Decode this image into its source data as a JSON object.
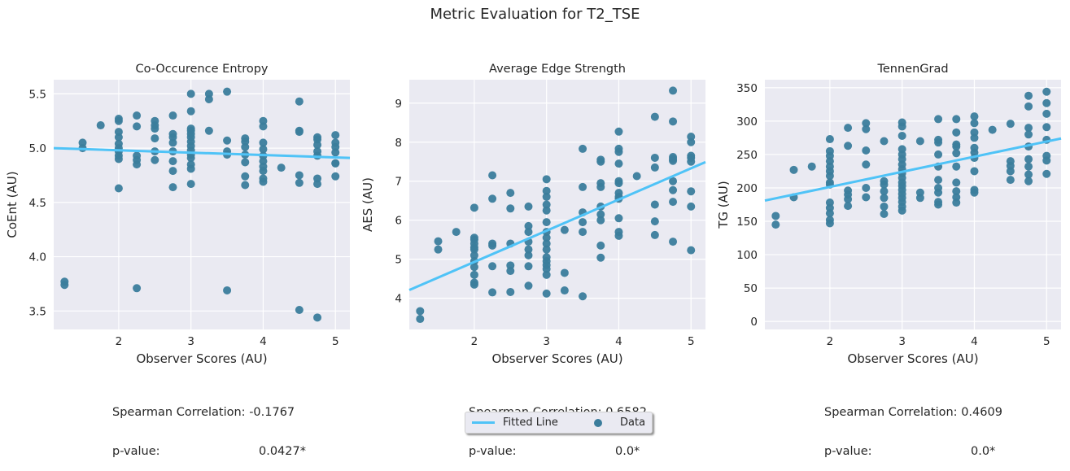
{
  "title": "Metric Evaluation for T2_TSE",
  "colors": {
    "background": "#eaeaf2",
    "grid": "#ffffff",
    "fit": "#4fc3f7",
    "data": "#3b7d9c"
  },
  "legend": {
    "fitted": "Fitted Line",
    "data": "Data"
  },
  "chart_data": [
    {
      "type": "scatter",
      "title": "Co-Occurence Entropy",
      "xlabel": "Observer Scores (AU)",
      "ylabel": "CoEnt (AU)",
      "xlim": [
        1.1,
        5.2
      ],
      "ylim": [
        3.33,
        5.63
      ],
      "xticks": [
        2,
        3,
        4,
        5
      ],
      "yticks": [
        3.5,
        4.0,
        4.5,
        5.0,
        5.5
      ],
      "ytick_labels": [
        "3.5",
        "4.0",
        "4.5",
        "5.0",
        "5.5"
      ],
      "fit": {
        "x": [
          1.1,
          5.2
        ],
        "y": [
          5.0,
          4.91
        ]
      },
      "stats": {
        "corr_label": "Spearman Correlation:",
        "corr": "-0.1767",
        "p_label": "p-value:",
        "p": "0.0427*"
      },
      "points": [
        [
          1.25,
          3.77
        ],
        [
          1.25,
          3.74
        ],
        [
          1.5,
          5.05
        ],
        [
          1.5,
          5.0
        ],
        [
          1.75,
          5.21
        ],
        [
          2,
          5.27
        ],
        [
          2,
          5.25
        ],
        [
          2,
          5.15
        ],
        [
          2,
          5.1
        ],
        [
          2,
          5.04
        ],
        [
          2,
          5.0
        ],
        [
          2,
          4.97
        ],
        [
          2,
          4.93
        ],
        [
          2,
          4.9
        ],
        [
          2,
          4.63
        ],
        [
          2.25,
          5.3
        ],
        [
          2.25,
          5.2
        ],
        [
          2.25,
          4.93
        ],
        [
          2.25,
          4.89
        ],
        [
          2.25,
          4.85
        ],
        [
          2.25,
          3.71
        ],
        [
          2.5,
          5.25
        ],
        [
          2.5,
          5.21
        ],
        [
          2.5,
          5.18
        ],
        [
          2.5,
          5.09
        ],
        [
          2.5,
          4.97
        ],
        [
          2.5,
          4.89
        ],
        [
          2.75,
          5.3
        ],
        [
          2.75,
          5.13
        ],
        [
          2.75,
          5.1
        ],
        [
          2.75,
          5.05
        ],
        [
          2.75,
          4.97
        ],
        [
          2.75,
          4.88
        ],
        [
          2.75,
          4.79
        ],
        [
          2.75,
          4.64
        ],
        [
          3,
          5.5
        ],
        [
          3,
          5.34
        ],
        [
          3,
          5.18
        ],
        [
          3,
          5.16
        ],
        [
          3,
          5.13
        ],
        [
          3,
          5.1
        ],
        [
          3,
          5.06
        ],
        [
          3,
          5.02
        ],
        [
          3,
          4.98
        ],
        [
          3,
          4.94
        ],
        [
          3,
          4.91
        ],
        [
          3,
          4.85
        ],
        [
          3,
          4.81
        ],
        [
          3,
          4.67
        ],
        [
          3.25,
          5.5
        ],
        [
          3.25,
          5.45
        ],
        [
          3.25,
          5.16
        ],
        [
          3.5,
          5.52
        ],
        [
          3.5,
          5.07
        ],
        [
          3.5,
          4.97
        ],
        [
          3.5,
          4.94
        ],
        [
          3.5,
          3.69
        ],
        [
          3.75,
          5.09
        ],
        [
          3.75,
          5.06
        ],
        [
          3.75,
          5.01
        ],
        [
          3.75,
          4.94
        ],
        [
          3.75,
          4.87
        ],
        [
          3.75,
          4.74
        ],
        [
          3.75,
          4.66
        ],
        [
          4,
          5.25
        ],
        [
          4,
          5.2
        ],
        [
          4,
          5.05
        ],
        [
          4,
          4.99
        ],
        [
          4,
          4.93
        ],
        [
          4,
          4.88
        ],
        [
          4,
          4.83
        ],
        [
          4,
          4.79
        ],
        [
          4,
          4.72
        ],
        [
          4,
          4.69
        ],
        [
          4.25,
          4.82
        ],
        [
          4.5,
          5.43
        ],
        [
          4.5,
          5.16
        ],
        [
          4.5,
          5.15
        ],
        [
          4.5,
          4.75
        ],
        [
          4.5,
          4.68
        ],
        [
          4.5,
          3.51
        ],
        [
          4.75,
          5.1
        ],
        [
          4.75,
          5.08
        ],
        [
          4.75,
          5.03
        ],
        [
          4.75,
          4.97
        ],
        [
          4.75,
          4.93
        ],
        [
          4.75,
          4.72
        ],
        [
          4.75,
          4.67
        ],
        [
          4.75,
          3.44
        ],
        [
          5,
          5.12
        ],
        [
          5,
          5.05
        ],
        [
          5,
          5.01
        ],
        [
          5,
          4.96
        ],
        [
          5,
          4.86
        ],
        [
          5,
          4.86
        ],
        [
          5,
          4.74
        ]
      ]
    },
    {
      "type": "scatter",
      "title": "Average Edge Strength",
      "xlabel": "Observer Scores (AU)",
      "ylabel": "AES (AU)",
      "xlim": [
        1.1,
        5.2
      ],
      "ylim": [
        3.2,
        9.6
      ],
      "xticks": [
        2,
        3,
        4,
        5
      ],
      "yticks": [
        4,
        5,
        6,
        7,
        8,
        9
      ],
      "ytick_labels": [
        "4",
        "5",
        "6",
        "7",
        "8",
        "9"
      ],
      "fit": {
        "x": [
          1.1,
          5.2
        ],
        "y": [
          4.21,
          7.49
        ]
      },
      "stats": {
        "corr_label": "Spearman Correlation:",
        "corr": "0.6582",
        "p_label": "p-value:",
        "p": "0.0*"
      },
      "points": [
        [
          1.25,
          3.67
        ],
        [
          1.25,
          3.47
        ],
        [
          1.5,
          5.46
        ],
        [
          1.5,
          5.25
        ],
        [
          1.75,
          5.7
        ],
        [
          2,
          6.32
        ],
        [
          2,
          5.55
        ],
        [
          2,
          5.5
        ],
        [
          2,
          5.4
        ],
        [
          2,
          5.3
        ],
        [
          2,
          5.25
        ],
        [
          2,
          5.1
        ],
        [
          2,
          4.95
        ],
        [
          2,
          4.8
        ],
        [
          2,
          4.6
        ],
        [
          2,
          4.4
        ],
        [
          2,
          4.35
        ],
        [
          2.25,
          7.15
        ],
        [
          2.25,
          6.55
        ],
        [
          2.25,
          5.4
        ],
        [
          2.25,
          5.35
        ],
        [
          2.25,
          4.82
        ],
        [
          2.25,
          4.15
        ],
        [
          2.5,
          6.7
        ],
        [
          2.5,
          6.3
        ],
        [
          2.5,
          5.4
        ],
        [
          2.5,
          4.84
        ],
        [
          2.5,
          4.7
        ],
        [
          2.5,
          4.16
        ],
        [
          2.75,
          6.35
        ],
        [
          2.75,
          5.85
        ],
        [
          2.75,
          5.7
        ],
        [
          2.75,
          5.45
        ],
        [
          2.75,
          5.25
        ],
        [
          2.75,
          5.1
        ],
        [
          2.75,
          4.82
        ],
        [
          2.75,
          4.32
        ],
        [
          3,
          7.05
        ],
        [
          3,
          6.75
        ],
        [
          3,
          6.6
        ],
        [
          3,
          6.4
        ],
        [
          3,
          6.25
        ],
        [
          3,
          5.95
        ],
        [
          3,
          5.7
        ],
        [
          3,
          5.55
        ],
        [
          3,
          5.4
        ],
        [
          3,
          5.25
        ],
        [
          3,
          5.05
        ],
        [
          3,
          4.95
        ],
        [
          3,
          4.85
        ],
        [
          3,
          4.75
        ],
        [
          3,
          4.6
        ],
        [
          3,
          4.12
        ],
        [
          3.25,
          5.75
        ],
        [
          3.25,
          4.65
        ],
        [
          3.25,
          4.2
        ],
        [
          3.5,
          7.83
        ],
        [
          3.5,
          6.85
        ],
        [
          3.5,
          6.2
        ],
        [
          3.5,
          5.95
        ],
        [
          3.5,
          5.7
        ],
        [
          3.5,
          4.05
        ],
        [
          3.75,
          7.55
        ],
        [
          3.75,
          7.5
        ],
        [
          3.75,
          6.95
        ],
        [
          3.75,
          6.85
        ],
        [
          3.75,
          6.35
        ],
        [
          3.75,
          6.15
        ],
        [
          3.75,
          6.0
        ],
        [
          3.75,
          5.35
        ],
        [
          3.75,
          5.04
        ],
        [
          4,
          8.27
        ],
        [
          4,
          7.83
        ],
        [
          4,
          7.75
        ],
        [
          4,
          7.45
        ],
        [
          4,
          7.0
        ],
        [
          4,
          6.95
        ],
        [
          4,
          6.7
        ],
        [
          4,
          6.6
        ],
        [
          4,
          6.55
        ],
        [
          4,
          6.05
        ],
        [
          4,
          5.7
        ],
        [
          4,
          5.6
        ],
        [
          4.25,
          7.13
        ],
        [
          4.5,
          8.65
        ],
        [
          4.5,
          7.6
        ],
        [
          4.5,
          7.35
        ],
        [
          4.5,
          6.4
        ],
        [
          4.5,
          5.97
        ],
        [
          4.5,
          5.62
        ],
        [
          4.75,
          9.32
        ],
        [
          4.75,
          8.53
        ],
        [
          4.75,
          7.62
        ],
        [
          4.75,
          7.57
        ],
        [
          4.75,
          7.52
        ],
        [
          4.75,
          7.0
        ],
        [
          4.75,
          6.77
        ],
        [
          4.75,
          6.47
        ],
        [
          4.75,
          5.45
        ],
        [
          5,
          8.14
        ],
        [
          5,
          8.0
        ],
        [
          5,
          7.65
        ],
        [
          5,
          7.6
        ],
        [
          5,
          7.5
        ],
        [
          5,
          6.74
        ],
        [
          5,
          6.35
        ],
        [
          5,
          5.23
        ]
      ]
    },
    {
      "type": "scatter",
      "title": "TennenGrad",
      "xlabel": "Observer Scores (AU)",
      "ylabel": "TG (AU)",
      "xlim": [
        1.1,
        5.2
      ],
      "ylim": [
        -12,
        362
      ],
      "xticks": [
        2,
        3,
        4,
        5
      ],
      "yticks": [
        0,
        50,
        100,
        150,
        200,
        250,
        300,
        350
      ],
      "ytick_labels": [
        "0",
        "50",
        "100",
        "150",
        "200",
        "250",
        "300",
        "350"
      ],
      "fit": {
        "x": [
          1.1,
          5.2
        ],
        "y": [
          181,
          274
        ]
      },
      "stats": {
        "corr_label": "Spearman Correlation:",
        "corr": "0.4609",
        "p_label": "p-value:",
        "p": "0.0*"
      },
      "points": [
        [
          1.25,
          158
        ],
        [
          1.25,
          145
        ],
        [
          1.5,
          227
        ],
        [
          1.5,
          186
        ],
        [
          1.75,
          232
        ],
        [
          2,
          273
        ],
        [
          2,
          255
        ],
        [
          2,
          248
        ],
        [
          2,
          240
        ],
        [
          2,
          232
        ],
        [
          2,
          225
        ],
        [
          2,
          218
        ],
        [
          2,
          208
        ],
        [
          2,
          205
        ],
        [
          2,
          178
        ],
        [
          2,
          170
        ],
        [
          2,
          162
        ],
        [
          2,
          152
        ],
        [
          2,
          147
        ],
        [
          2.25,
          290
        ],
        [
          2.25,
          263
        ],
        [
          2.25,
          196
        ],
        [
          2.25,
          190
        ],
        [
          2.25,
          183
        ],
        [
          2.25,
          173
        ],
        [
          2.5,
          297
        ],
        [
          2.5,
          288
        ],
        [
          2.5,
          256
        ],
        [
          2.5,
          235
        ],
        [
          2.5,
          200
        ],
        [
          2.5,
          186
        ],
        [
          2.75,
          270
        ],
        [
          2.75,
          210
        ],
        [
          2.75,
          205
        ],
        [
          2.75,
          195
        ],
        [
          2.75,
          185
        ],
        [
          2.75,
          172
        ],
        [
          2.75,
          161
        ],
        [
          3,
          298
        ],
        [
          3,
          292
        ],
        [
          3,
          278
        ],
        [
          3,
          258
        ],
        [
          3,
          250
        ],
        [
          3,
          243
        ],
        [
          3,
          235
        ],
        [
          3,
          228
        ],
        [
          3,
          222
        ],
        [
          3,
          215
        ],
        [
          3,
          208
        ],
        [
          3,
          203
        ],
        [
          3,
          197
        ],
        [
          3,
          191
        ],
        [
          3,
          185
        ],
        [
          3,
          179
        ],
        [
          3,
          172
        ],
        [
          3,
          166
        ],
        [
          3.25,
          270
        ],
        [
          3.25,
          193
        ],
        [
          3.25,
          185
        ],
        [
          3.5,
          303
        ],
        [
          3.5,
          272
        ],
        [
          3.5,
          268
        ],
        [
          3.5,
          250
        ],
        [
          3.5,
          232
        ],
        [
          3.5,
          212
        ],
        [
          3.5,
          200
        ],
        [
          3.5,
          193
        ],
        [
          3.5,
          179
        ],
        [
          3.5,
          175
        ],
        [
          3.75,
          303
        ],
        [
          3.75,
          283
        ],
        [
          3.75,
          265
        ],
        [
          3.75,
          262
        ],
        [
          3.75,
          252
        ],
        [
          3.75,
          232
        ],
        [
          3.75,
          208
        ],
        [
          3.75,
          195
        ],
        [
          3.75,
          186
        ],
        [
          3.75,
          178
        ],
        [
          4,
          307
        ],
        [
          4,
          297
        ],
        [
          4,
          283
        ],
        [
          4,
          275
        ],
        [
          4,
          260
        ],
        [
          4,
          253
        ],
        [
          4,
          245
        ],
        [
          4,
          225
        ],
        [
          4,
          197
        ],
        [
          4,
          193
        ],
        [
          4.25,
          287
        ],
        [
          4.5,
          296
        ],
        [
          4.5,
          240
        ],
        [
          4.5,
          233
        ],
        [
          4.5,
          225
        ],
        [
          4.5,
          212
        ],
        [
          4.75,
          338
        ],
        [
          4.75,
          322
        ],
        [
          4.75,
          290
        ],
        [
          4.75,
          280
        ],
        [
          4.75,
          262
        ],
        [
          4.75,
          243
        ],
        [
          4.75,
          232
        ],
        [
          4.75,
          220
        ],
        [
          4.75,
          210
        ],
        [
          5,
          344
        ],
        [
          5,
          327
        ],
        [
          5,
          311
        ],
        [
          5,
          291
        ],
        [
          5,
          272
        ],
        [
          5,
          248
        ],
        [
          5,
          241
        ],
        [
          5,
          221
        ]
      ]
    }
  ]
}
